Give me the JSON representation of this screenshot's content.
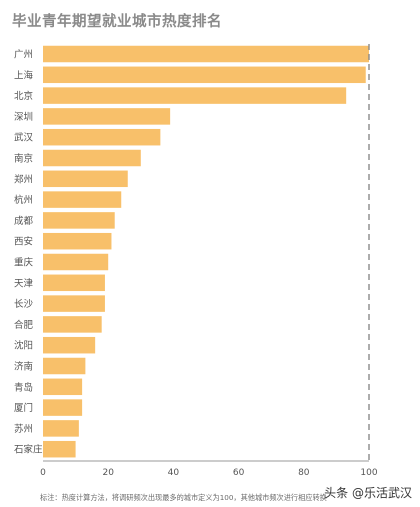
{
  "title": "毕业青年期望就业城市热度排名",
  "note": "标注：热度计算方法，将调研频次出现最多的城市定义为100，其他城市频次进行相应转换",
  "watermark": "头条 @乐活武汉",
  "colors": {
    "bar": "#f8c06a",
    "axis": "#9a9a9a",
    "guide": "#8a8a8a",
    "text": "#555555"
  },
  "chart_data": {
    "type": "bar",
    "orientation": "horizontal",
    "categories": [
      "广州",
      "上海",
      "北京",
      "深圳",
      "武汉",
      "南京",
      "郑州",
      "杭州",
      "成都",
      "西安",
      "重庆",
      "天津",
      "长沙",
      "合肥",
      "沈阳",
      "济南",
      "青岛",
      "厦门",
      "苏州",
      "石家庄"
    ],
    "values": [
      100,
      99,
      93,
      39,
      36,
      30,
      26,
      24,
      22,
      21,
      20,
      19,
      19,
      18,
      16,
      13,
      12,
      12,
      11,
      10
    ],
    "xlim": [
      0,
      100
    ],
    "xticks": [
      0,
      20,
      40,
      60,
      80,
      100
    ],
    "reference_line": 100,
    "grid": false,
    "legend": "none"
  }
}
